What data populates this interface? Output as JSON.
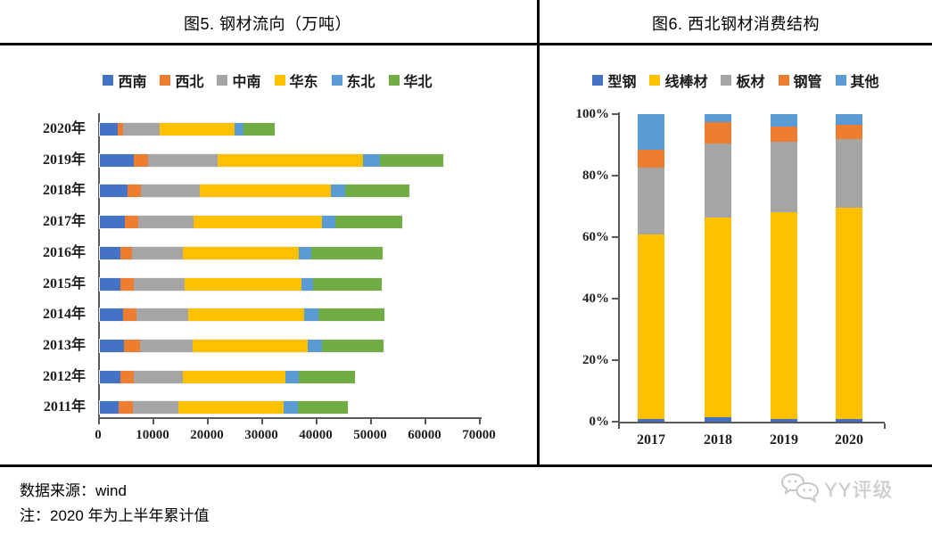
{
  "left_chart": {
    "title": "图5. 钢材流向（万吨）"
  },
  "right_chart": {
    "title": "图6. 西北钢材消费结构"
  },
  "chart_data": [
    {
      "type": "bar",
      "orientation": "horizontal",
      "stacked": true,
      "title": "图5. 钢材流向（万吨）",
      "legend_position": "top",
      "grid": false,
      "categories": [
        "2020年",
        "2019年",
        "2018年",
        "2017年",
        "2016年",
        "2015年",
        "2014年",
        "2013年",
        "2012年",
        "2011年"
      ],
      "series": [
        {
          "name": "西南",
          "color": "#4472C4",
          "values": [
            3200,
            6200,
            5100,
            4600,
            3800,
            3800,
            4300,
            4500,
            3800,
            3500
          ]
        },
        {
          "name": "西北",
          "color": "#ED7D31",
          "values": [
            1100,
            2600,
            2500,
            2400,
            2100,
            2400,
            2400,
            2900,
            2500,
            2500
          ]
        },
        {
          "name": "中南",
          "color": "#A5A5A5",
          "values": [
            6700,
            12800,
            10800,
            10200,
            9300,
            9400,
            9500,
            9600,
            8900,
            8400
          ]
        },
        {
          "name": "华东",
          "color": "#FFC000",
          "values": [
            13800,
            26800,
            24100,
            23600,
            21400,
            21400,
            21400,
            21200,
            18900,
            19300
          ]
        },
        {
          "name": "东北",
          "color": "#5B9BD5",
          "values": [
            1600,
            3000,
            2600,
            2500,
            2300,
            2200,
            2500,
            2700,
            2500,
            2700
          ]
        },
        {
          "name": "华北",
          "color": "#70AD47",
          "values": [
            5800,
            11800,
            11800,
            12200,
            13000,
            12600,
            12200,
            11300,
            10300,
            9200
          ]
        }
      ],
      "xlim": [
        0,
        70000
      ],
      "xticks": [
        0,
        10000,
        20000,
        30000,
        40000,
        50000,
        60000,
        70000
      ],
      "xtick_labels": [
        "0",
        "10000",
        "20000",
        "30000",
        "40000",
        "50000",
        "60000",
        "70000"
      ]
    },
    {
      "type": "bar",
      "orientation": "vertical",
      "stacked": true,
      "percent": true,
      "title": "图6. 西北钢材消费结构",
      "legend_position": "top",
      "grid": false,
      "categories": [
        "2017",
        "2018",
        "2019",
        "2020"
      ],
      "series": [
        {
          "name": "型钢",
          "color": "#4472C4",
          "values": [
            1,
            1.5,
            1,
            1
          ]
        },
        {
          "name": "线棒材",
          "color": "#FFC000",
          "values": [
            60,
            65,
            67,
            68.5
          ]
        },
        {
          "name": "板材",
          "color": "#A5A5A5",
          "values": [
            21.5,
            24,
            23,
            22.5
          ]
        },
        {
          "name": "钢管",
          "color": "#ED7D31",
          "values": [
            6,
            7,
            5,
            4.5
          ]
        },
        {
          "name": "其他",
          "color": "#5B9BD5",
          "values": [
            11.5,
            2.5,
            4,
            3.5
          ]
        }
      ],
      "ylim": [
        0,
        100
      ],
      "yticks": [
        0,
        20,
        40,
        60,
        80,
        100
      ],
      "ytick_labels": [
        "0%",
        "20%",
        "40%",
        "60%",
        "80%",
        "100%"
      ]
    }
  ],
  "footer": {
    "source": "数据来源：wind",
    "note": "注：2020 年为上半年累计值"
  },
  "logo": {
    "text": "YY评级",
    "icon": "chat-bubbles-icon"
  },
  "colors": {
    "axis": "#595959",
    "rule": "#000000",
    "palette_blue": "#4472C4",
    "palette_orange": "#ED7D31",
    "palette_gray": "#A5A5A5",
    "palette_yellow": "#FFC000",
    "palette_lightblue": "#5B9BD5",
    "palette_green": "#70AD47"
  }
}
